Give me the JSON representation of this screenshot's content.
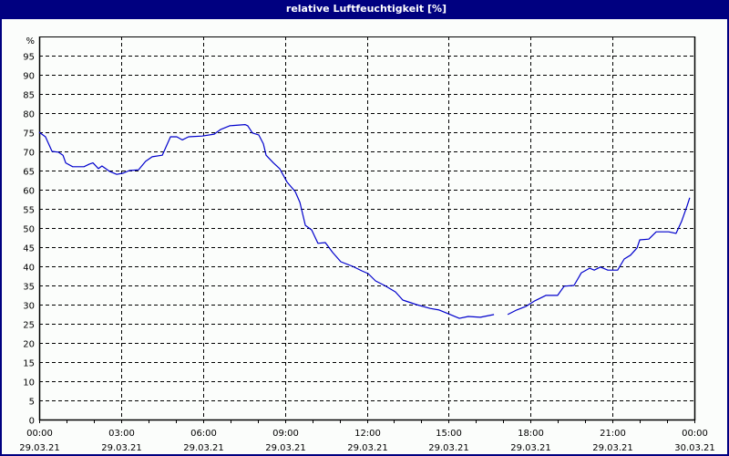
{
  "window": {
    "title": "relative Luftfeuchtigkeit [%]",
    "colors": {
      "title_bg": "#000080",
      "title_fg": "#ffffff",
      "plot_bg": "#fbfdfb",
      "grid": "#000000",
      "line": "#0000cc"
    }
  },
  "chart_data": {
    "type": "line",
    "title": "relative Luftfeuchtigkeit [%]",
    "xlabel": "",
    "ylabel": "%",
    "ylim": [
      0,
      100
    ],
    "xlim_hours": [
      0,
      24
    ],
    "grid": true,
    "legend": null,
    "y_ticks": [
      0,
      5,
      10,
      15,
      20,
      25,
      30,
      35,
      40,
      45,
      50,
      55,
      60,
      65,
      70,
      75,
      80,
      85,
      90,
      95
    ],
    "y_unit_label": "%",
    "x_ticks": [
      {
        "hour": 0,
        "time": "00:00",
        "date": "29.03.21"
      },
      {
        "hour": 3,
        "time": "03:00",
        "date": "29.03.21"
      },
      {
        "hour": 6,
        "time": "06:00",
        "date": "29.03.21"
      },
      {
        "hour": 9,
        "time": "09:00",
        "date": "29.03.21"
      },
      {
        "hour": 12,
        "time": "12:00",
        "date": "29.03.21"
      },
      {
        "hour": 15,
        "time": "15:00",
        "date": "29.03.21"
      },
      {
        "hour": 18,
        "time": "18:00",
        "date": "29.03.21"
      },
      {
        "hour": 21,
        "time": "21:00",
        "date": "29.03.21"
      },
      {
        "hour": 24,
        "time": "00:00",
        "date": "30.03.21"
      }
    ],
    "series": [
      {
        "name": "relative Luftfeuchtigkeit",
        "unit": "%",
        "segments": [
          [
            [
              0.0,
              75.0
            ],
            [
              0.23,
              73.8
            ],
            [
              0.47,
              70.0
            ],
            [
              0.7,
              69.8
            ],
            [
              0.87,
              69.0
            ],
            [
              0.97,
              67.0
            ],
            [
              1.23,
              66.0
            ],
            [
              1.64,
              66.0
            ],
            [
              1.84,
              66.7
            ],
            [
              1.97,
              67.0
            ],
            [
              2.17,
              65.5
            ],
            [
              2.3,
              66.2
            ],
            [
              2.57,
              64.8
            ],
            [
              2.84,
              64.0
            ],
            [
              3.07,
              64.3
            ],
            [
              3.3,
              65.0
            ],
            [
              3.64,
              65.2
            ],
            [
              3.9,
              67.4
            ],
            [
              4.14,
              68.6
            ],
            [
              4.51,
              69.0
            ],
            [
              4.81,
              73.8
            ],
            [
              5.04,
              73.8
            ],
            [
              5.24,
              73.0
            ],
            [
              5.47,
              73.8
            ],
            [
              5.97,
              74.0
            ],
            [
              6.41,
              74.5
            ],
            [
              6.64,
              75.7
            ],
            [
              6.98,
              76.7
            ],
            [
              7.54,
              77.0
            ],
            [
              7.64,
              76.7
            ],
            [
              7.81,
              74.8
            ],
            [
              8.04,
              74.3
            ],
            [
              8.21,
              72.0
            ],
            [
              8.31,
              69.0
            ],
            [
              8.58,
              67.0
            ],
            [
              8.81,
              65.5
            ],
            [
              9.08,
              62.0
            ],
            [
              9.38,
              59.5
            ],
            [
              9.55,
              56.7
            ],
            [
              9.75,
              50.7
            ],
            [
              9.98,
              49.5
            ],
            [
              10.21,
              46.0
            ],
            [
              10.48,
              46.2
            ],
            [
              10.75,
              43.6
            ],
            [
              11.05,
              41.2
            ],
            [
              11.48,
              40.0
            ],
            [
              11.82,
              38.8
            ],
            [
              12.05,
              38.1
            ],
            [
              12.32,
              36.2
            ],
            [
              12.65,
              35.0
            ],
            [
              13.05,
              33.3
            ],
            [
              13.32,
              31.2
            ],
            [
              13.82,
              30.0
            ],
            [
              14.32,
              29.0
            ],
            [
              14.65,
              28.6
            ],
            [
              14.99,
              27.6
            ],
            [
              15.39,
              26.4
            ],
            [
              15.72,
              26.9
            ],
            [
              16.16,
              26.7
            ],
            [
              16.66,
              27.4
            ]
          ],
          [
            [
              17.16,
              27.4
            ],
            [
              17.49,
              28.6
            ],
            [
              17.82,
              29.5
            ],
            [
              18.16,
              31.0
            ],
            [
              18.56,
              32.4
            ],
            [
              18.99,
              32.4
            ],
            [
              19.23,
              34.8
            ],
            [
              19.59,
              35.0
            ],
            [
              19.86,
              38.3
            ],
            [
              20.16,
              39.5
            ],
            [
              20.33,
              39.0
            ],
            [
              20.56,
              39.8
            ],
            [
              20.83,
              39.0
            ],
            [
              21.19,
              39.0
            ],
            [
              21.43,
              41.9
            ],
            [
              21.66,
              42.9
            ],
            [
              21.9,
              44.8
            ],
            [
              22.0,
              46.9
            ],
            [
              22.33,
              47.1
            ],
            [
              22.6,
              49.0
            ],
            [
              23.06,
              49.0
            ],
            [
              23.33,
              48.6
            ],
            [
              23.53,
              51.7
            ],
            [
              23.73,
              55.7
            ],
            [
              23.83,
              57.9
            ]
          ]
        ]
      }
    ]
  }
}
